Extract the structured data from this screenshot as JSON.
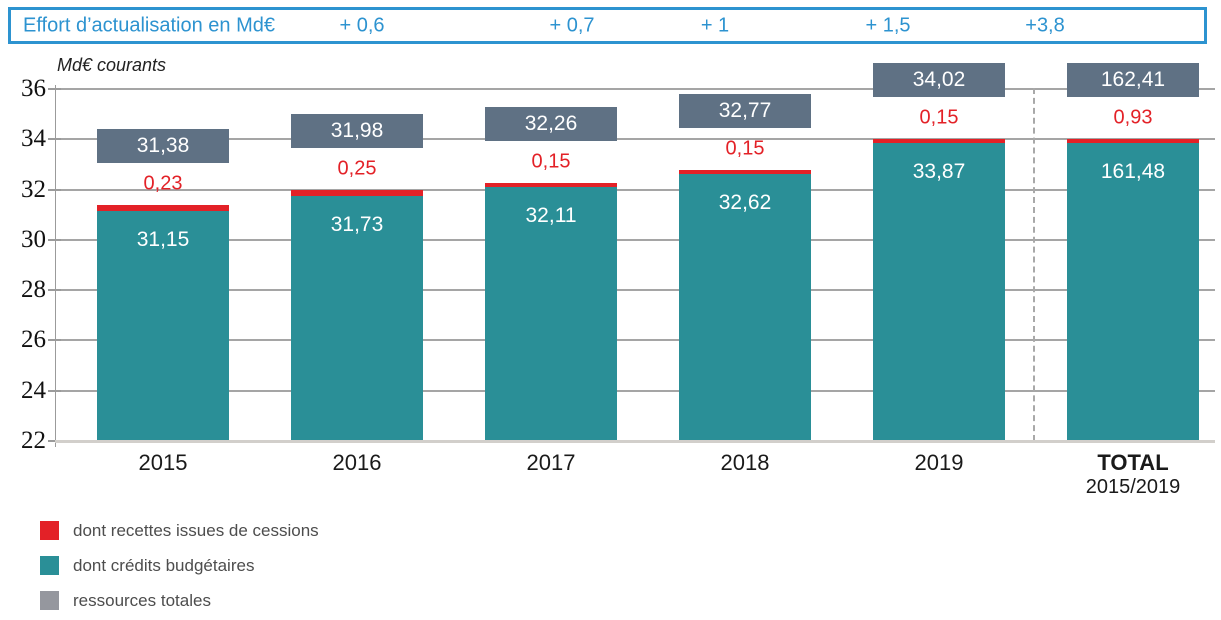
{
  "banner": {
    "label": "Effort d’actualisation en Md€",
    "values": [
      "+ 0,6",
      "+ 0,7",
      "+ 1",
      "+ 1,5",
      "+3,8"
    ],
    "accent_color": "#2d93d0"
  },
  "chart_data": {
    "type": "bar",
    "title": "",
    "unit_label": "Md€ courants",
    "categories": [
      {
        "label": "2015",
        "sublabel": "",
        "bold": false
      },
      {
        "label": "2016",
        "sublabel": "",
        "bold": false
      },
      {
        "label": "2017",
        "sublabel": "",
        "bold": false
      },
      {
        "label": "2018",
        "sublabel": "",
        "bold": false
      },
      {
        "label": "2019",
        "sublabel": "",
        "bold": false
      },
      {
        "label": "TOTAL",
        "sublabel": "2015/2019",
        "bold": true
      }
    ],
    "series": [
      {
        "name": "dont crédits budgétaires",
        "color": "#2a8f97",
        "values": [
          31.15,
          31.73,
          32.11,
          32.62,
          33.87,
          161.48
        ],
        "labels": [
          "31,15",
          "31,73",
          "32,11",
          "32,62",
          "33,87",
          "161,48"
        ]
      },
      {
        "name": "dont recettes issues de cessions",
        "color": "#e32127",
        "values": [
          0.23,
          0.25,
          0.15,
          0.15,
          0.15,
          0.93
        ],
        "labels": [
          "0,23",
          "0,25",
          "0,15",
          "0,15",
          "0,15",
          "0,93"
        ]
      },
      {
        "name": "ressources totales",
        "color": "#5f7184",
        "values": [
          31.38,
          31.98,
          32.26,
          32.77,
          34.02,
          162.41
        ],
        "labels": [
          "31,38",
          "31,98",
          "32,26",
          "32,77",
          "34,02",
          "162,41"
        ]
      }
    ],
    "ylim": [
      22,
      36
    ],
    "yticks": [
      36,
      34,
      32,
      30,
      28,
      26,
      24,
      22
    ],
    "grid": true,
    "stacked": true,
    "legend_position": "bottom-left",
    "clip_display": {
      "column": 5,
      "budget_top": 33.87,
      "total_top": 34.02
    },
    "separator_after_column": 4
  },
  "legend": {
    "items": [
      {
        "label": "dont recettes issues de cessions",
        "color": "#e32127"
      },
      {
        "label": "dont crédits budgétaires",
        "color": "#2a8f97"
      },
      {
        "label": "ressources totales",
        "color": "#95979e"
      }
    ]
  }
}
